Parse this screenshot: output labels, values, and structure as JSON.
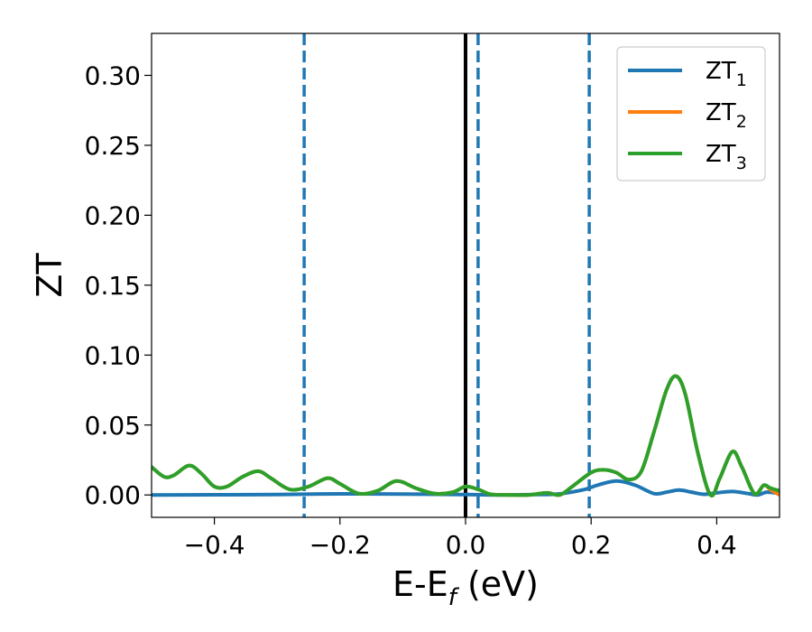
{
  "chart_data": {
    "type": "line",
    "title": "",
    "xlabel": "E-E",
    "xlabel_subscript": "f",
    "xlabel_unit": "(eV)",
    "ylabel": "ZT",
    "xlim": [
      -0.5,
      0.5
    ],
    "ylim": [
      -0.016,
      0.33
    ],
    "grid": false,
    "legend_position": "top-right",
    "x_ticks": [
      -0.4,
      -0.2,
      0.0,
      0.2,
      0.4
    ],
    "x_tick_labels": [
      "−0.4",
      "−0.2",
      "0.0",
      "0.2",
      "0.4"
    ],
    "y_ticks": [
      0.0,
      0.05,
      0.1,
      0.15,
      0.2,
      0.25,
      0.3
    ],
    "y_tick_labels": [
      "0.00",
      "0.05",
      "0.10",
      "0.15",
      "0.20",
      "0.25",
      "0.30"
    ],
    "vertical_lines": [
      {
        "x": 0.0,
        "style": "solid",
        "color": "#000000"
      },
      {
        "x": -0.257,
        "style": "dashed",
        "color": "#1f77b4"
      },
      {
        "x": 0.02,
        "style": "dashed",
        "color": "#1f77b4"
      },
      {
        "x": 0.197,
        "style": "dashed",
        "color": "#1f77b4"
      }
    ],
    "series": [
      {
        "name": "ZT",
        "subscript": "1",
        "color": "#1f77b4",
        "points": [
          [
            -0.5,
            0.0
          ],
          [
            -0.3,
            0.0003
          ],
          [
            -0.2,
            0.0008
          ],
          [
            -0.1,
            0.0006
          ],
          [
            0.0,
            0.0003
          ],
          [
            0.05,
            0.0
          ],
          [
            0.1,
            0.0002
          ],
          [
            0.15,
            0.0008
          ],
          [
            0.19,
            0.004
          ],
          [
            0.21,
            0.007
          ],
          [
            0.24,
            0.01
          ],
          [
            0.27,
            0.007
          ],
          [
            0.3,
            0.001
          ],
          [
            0.32,
            0.002
          ],
          [
            0.34,
            0.0035
          ],
          [
            0.36,
            0.002
          ],
          [
            0.38,
            0.0005
          ],
          [
            0.4,
            0.0015
          ],
          [
            0.425,
            0.0025
          ],
          [
            0.45,
            0.001
          ],
          [
            0.465,
            0.0
          ],
          [
            0.48,
            0.002
          ],
          [
            0.5,
            0.001
          ]
        ]
      },
      {
        "name": "ZT",
        "subscript": "2",
        "color": "#ff7f0e",
        "points": [
          [
            -0.5,
            0.02
          ],
          [
            -0.48,
            0.013
          ],
          [
            -0.465,
            0.014
          ],
          [
            -0.44,
            0.021
          ],
          [
            -0.42,
            0.015
          ],
          [
            -0.4,
            0.006
          ],
          [
            -0.38,
            0.006
          ],
          [
            -0.355,
            0.013
          ],
          [
            -0.33,
            0.017
          ],
          [
            -0.31,
            0.012
          ],
          [
            -0.28,
            0.004
          ],
          [
            -0.25,
            0.006
          ],
          [
            -0.22,
            0.012
          ],
          [
            -0.2,
            0.008
          ],
          [
            -0.17,
            0.001
          ],
          [
            -0.14,
            0.003
          ],
          [
            -0.11,
            0.01
          ],
          [
            -0.08,
            0.005
          ],
          [
            -0.05,
            0.001
          ],
          [
            -0.02,
            0.002
          ],
          [
            0.0,
            0.006
          ],
          [
            0.02,
            0.004
          ],
          [
            0.04,
            0.0005
          ],
          [
            0.07,
            0.0
          ],
          [
            0.1,
            0.0
          ],
          [
            0.13,
            0.0015
          ],
          [
            0.15,
            0.0
          ],
          [
            0.17,
            0.006
          ],
          [
            0.2,
            0.016
          ],
          [
            0.22,
            0.018
          ],
          [
            0.24,
            0.016
          ],
          [
            0.26,
            0.011
          ],
          [
            0.28,
            0.017
          ],
          [
            0.3,
            0.045
          ],
          [
            0.32,
            0.075
          ],
          [
            0.335,
            0.085
          ],
          [
            0.35,
            0.072
          ],
          [
            0.37,
            0.03
          ],
          [
            0.39,
            0.0
          ],
          [
            0.405,
            0.012
          ],
          [
            0.425,
            0.031
          ],
          [
            0.44,
            0.02
          ],
          [
            0.46,
            0.001
          ],
          [
            0.475,
            0.007
          ],
          [
            0.485,
            0.004
          ],
          [
            0.5,
            0.0
          ]
        ]
      },
      {
        "name": "ZT",
        "subscript": "3",
        "color": "#2ca02c",
        "points": [
          [
            -0.5,
            0.02
          ],
          [
            -0.48,
            0.013
          ],
          [
            -0.465,
            0.014
          ],
          [
            -0.44,
            0.021
          ],
          [
            -0.42,
            0.015
          ],
          [
            -0.4,
            0.006
          ],
          [
            -0.38,
            0.006
          ],
          [
            -0.355,
            0.013
          ],
          [
            -0.33,
            0.017
          ],
          [
            -0.31,
            0.012
          ],
          [
            -0.28,
            0.004
          ],
          [
            -0.25,
            0.006
          ],
          [
            -0.22,
            0.012
          ],
          [
            -0.2,
            0.008
          ],
          [
            -0.17,
            0.001
          ],
          [
            -0.14,
            0.003
          ],
          [
            -0.11,
            0.01
          ],
          [
            -0.08,
            0.005
          ],
          [
            -0.05,
            0.001
          ],
          [
            -0.02,
            0.002
          ],
          [
            0.0,
            0.006
          ],
          [
            0.02,
            0.004
          ],
          [
            0.04,
            0.0005
          ],
          [
            0.07,
            0.0
          ],
          [
            0.1,
            0.0
          ],
          [
            0.13,
            0.0015
          ],
          [
            0.15,
            0.0
          ],
          [
            0.17,
            0.006
          ],
          [
            0.2,
            0.016
          ],
          [
            0.22,
            0.018
          ],
          [
            0.24,
            0.016
          ],
          [
            0.26,
            0.011
          ],
          [
            0.28,
            0.017
          ],
          [
            0.3,
            0.045
          ],
          [
            0.32,
            0.075
          ],
          [
            0.335,
            0.085
          ],
          [
            0.35,
            0.072
          ],
          [
            0.37,
            0.03
          ],
          [
            0.39,
            0.0
          ],
          [
            0.405,
            0.012
          ],
          [
            0.425,
            0.031
          ],
          [
            0.44,
            0.02
          ],
          [
            0.46,
            0.001
          ],
          [
            0.475,
            0.007
          ],
          [
            0.485,
            0.005
          ],
          [
            0.5,
            0.003
          ]
        ]
      }
    ]
  }
}
